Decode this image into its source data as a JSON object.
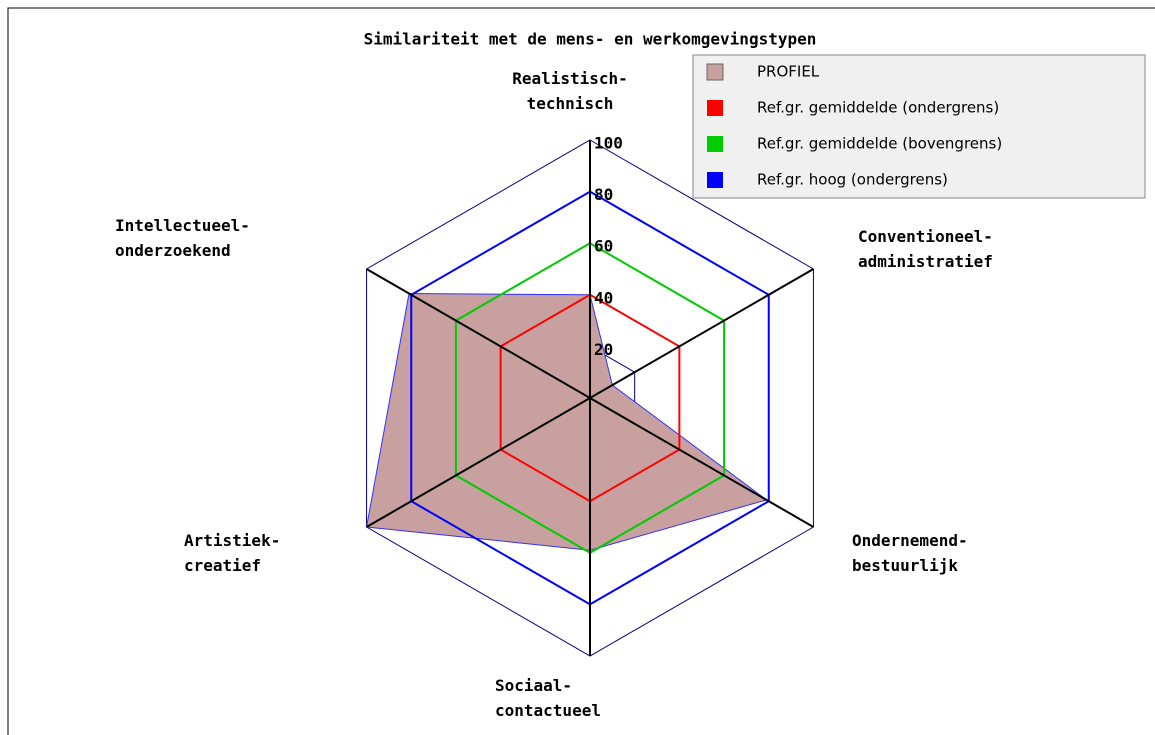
{
  "chart_data": {
    "type": "radar",
    "title": "Similariteit met de mens- en werkomgevingstypen",
    "categories": [
      "Realistisch-\ntechnisch",
      "Conventioneel-\nadministratief",
      "Ondernemend-\nbestuurlijk",
      "Sociaal-\ncontactueel",
      "Artistiek-\ncreatief",
      "Intellectueel-\nonderzoekend"
    ],
    "series": [
      {
        "name": "PROFIEL",
        "color": "#c9a0a0",
        "values": [
          40,
          10,
          79,
          59,
          100,
          81
        ]
      },
      {
        "name": "Ref.gr. gemiddelde (ondergrens)",
        "color": "#ff0000",
        "values": [
          40,
          40,
          40,
          40,
          40,
          40
        ]
      },
      {
        "name": "Ref.gr. gemiddelde (bovengrens)",
        "color": "#00cc00",
        "values": [
          60,
          60,
          60,
          60,
          60,
          60
        ]
      },
      {
        "name": "Ref.gr. hoog (ondergrens)",
        "color": "#0000ff",
        "values": [
          80,
          80,
          80,
          80,
          80,
          80
        ]
      }
    ],
    "ylim": [
      0,
      100
    ],
    "yticks": [
      20,
      40,
      60,
      80,
      100
    ],
    "grid": true
  }
}
